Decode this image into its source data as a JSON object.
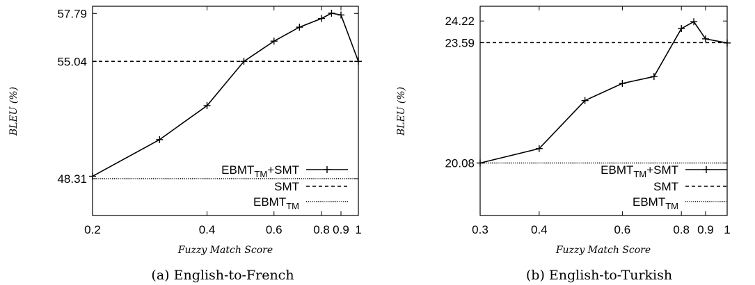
{
  "chart_data": [
    {
      "type": "line",
      "caption": "(a) English-to-French",
      "xlabel": "Fuzzy Match Score",
      "ylabel": "BLEU (%)",
      "xscale": "log",
      "xlim": [
        0.2,
        1
      ],
      "ylim": [
        46.2,
        58.2
      ],
      "xticks": [
        {
          "v": 0.2,
          "label": "0.2"
        },
        {
          "v": 0.4,
          "label": "0.4"
        },
        {
          "v": 0.6,
          "label": "0.6"
        },
        {
          "v": 0.8,
          "label": "0.8"
        },
        {
          "v": 0.9,
          "label": "0.9"
        },
        {
          "v": 1,
          "label": "1"
        }
      ],
      "yticks": [
        {
          "v": 48.31,
          "label": "48.31"
        },
        {
          "v": 55.04,
          "label": "55.04"
        },
        {
          "v": 57.79,
          "label": "57.79"
        }
      ],
      "series": [
        {
          "legend_main": "EBMT",
          "legend_sub": "TM",
          "legend_tail": "+SMT",
          "style": "solid-plus",
          "x": [
            0.2,
            0.3,
            0.4,
            0.5,
            0.6,
            0.7,
            0.8,
            0.85,
            0.9,
            1.0
          ],
          "y": [
            48.45,
            50.55,
            52.5,
            55.04,
            56.2,
            57.0,
            57.5,
            57.8,
            57.7,
            55.04
          ]
        },
        {
          "legend_main": "SMT",
          "legend_sub": "",
          "legend_tail": "",
          "style": "dashed",
          "x": [
            0.2,
            1
          ],
          "y": [
            55.04,
            55.04
          ]
        },
        {
          "legend_main": "EBMT",
          "legend_sub": "TM",
          "legend_tail": "",
          "style": "dotted",
          "x": [
            0.2,
            1
          ],
          "y": [
            48.31,
            48.31
          ]
        }
      ],
      "legend_position": "bottom-right"
    },
    {
      "type": "line",
      "caption": "(b) English-to-Turkish",
      "xlabel": "Fuzzy Match Score",
      "ylabel": "BLEU (%)",
      "xscale": "log",
      "xlim": [
        0.3,
        1
      ],
      "ylim": [
        18.55,
        24.65
      ],
      "xticks": [
        {
          "v": 0.3,
          "label": "0.3"
        },
        {
          "v": 0.4,
          "label": "0.4"
        },
        {
          "v": 0.6,
          "label": "0.6"
        },
        {
          "v": 0.8,
          "label": "0.8"
        },
        {
          "v": 0.9,
          "label": "0.9"
        },
        {
          "v": 1,
          "label": "1"
        }
      ],
      "yticks": [
        {
          "v": 20.08,
          "label": "20.08"
        },
        {
          "v": 23.59,
          "label": "23.59"
        },
        {
          "v": 24.22,
          "label": "24.22"
        }
      ],
      "series": [
        {
          "legend_main": "EBMT",
          "legend_sub": "TM",
          "legend_tail": "+SMT",
          "style": "solid-plus",
          "x": [
            0.3,
            0.4,
            0.5,
            0.6,
            0.7,
            0.8,
            0.85,
            0.9,
            1.0
          ],
          "y": [
            20.08,
            20.5,
            21.9,
            22.4,
            22.6,
            24.0,
            24.2,
            23.7,
            23.58
          ]
        },
        {
          "legend_main": "SMT",
          "legend_sub": "",
          "legend_tail": "",
          "style": "dashed",
          "x": [
            0.3,
            1
          ],
          "y": [
            23.59,
            23.59
          ]
        },
        {
          "legend_main": "EBMT",
          "legend_sub": "TM",
          "legend_tail": "",
          "style": "dotted",
          "x": [
            0.3,
            1
          ],
          "y": [
            20.08,
            20.08
          ]
        }
      ],
      "legend_position": "bottom-right"
    }
  ]
}
